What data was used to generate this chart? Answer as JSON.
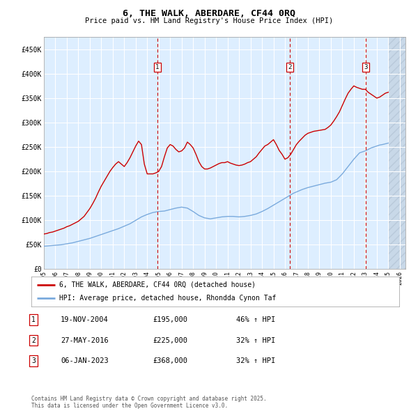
{
  "title": "6, THE WALK, ABERDARE, CF44 0RQ",
  "subtitle": "Price paid vs. HM Land Registry's House Price Index (HPI)",
  "legend_label_red": "6, THE WALK, ABERDARE, CF44 0RQ (detached house)",
  "legend_label_blue": "HPI: Average price, detached house, Rhondda Cynon Taf",
  "footer": "Contains HM Land Registry data © Crown copyright and database right 2025.\nThis data is licensed under the Open Government Licence v3.0.",
  "transactions": [
    {
      "num": 1,
      "date": "19-NOV-2004",
      "price": 195000,
      "hpi_change": "46% ↑ HPI",
      "x_year": 2004.89
    },
    {
      "num": 2,
      "date": "27-MAY-2016",
      "price": 225000,
      "hpi_change": "32% ↑ HPI",
      "x_year": 2016.41
    },
    {
      "num": 3,
      "date": "06-JAN-2023",
      "price": 368000,
      "hpi_change": "32% ↑ HPI",
      "x_year": 2023.02
    }
  ],
  "ylim": [
    0,
    475000
  ],
  "xlim_start": 1995,
  "xlim_end": 2026.5,
  "yticks": [
    0,
    50000,
    100000,
    150000,
    200000,
    250000,
    300000,
    350000,
    400000,
    450000
  ],
  "ytick_labels": [
    "£0",
    "£50K",
    "£100K",
    "£150K",
    "£200K",
    "£250K",
    "£300K",
    "£350K",
    "£400K",
    "£450K"
  ],
  "xticks": [
    1995,
    1996,
    1997,
    1998,
    1999,
    2000,
    2001,
    2002,
    2003,
    2004,
    2005,
    2006,
    2007,
    2008,
    2009,
    2010,
    2011,
    2012,
    2013,
    2014,
    2015,
    2016,
    2017,
    2018,
    2019,
    2020,
    2021,
    2022,
    2023,
    2024,
    2025,
    2026
  ],
  "red_color": "#cc0000",
  "blue_color": "#7aaadd",
  "background_color": "#ddeeff",
  "hatch_color": "#c8d8e8",
  "grid_color": "#ffffff",
  "hpi_line": {
    "years": [
      1995,
      1995.25,
      1995.5,
      1995.75,
      1996,
      1996.25,
      1996.5,
      1996.75,
      1997,
      1997.25,
      1997.5,
      1997.75,
      1998,
      1998.25,
      1998.5,
      1998.75,
      1999,
      1999.25,
      1999.5,
      1999.75,
      2000,
      2000.25,
      2000.5,
      2000.75,
      2001,
      2001.25,
      2001.5,
      2001.75,
      2002,
      2002.25,
      2002.5,
      2002.75,
      2003,
      2003.25,
      2003.5,
      2003.75,
      2004,
      2004.25,
      2004.5,
      2004.75,
      2005,
      2005.25,
      2005.5,
      2005.75,
      2006,
      2006.25,
      2006.5,
      2006.75,
      2007,
      2007.25,
      2007.5,
      2007.75,
      2008,
      2008.25,
      2008.5,
      2008.75,
      2009,
      2009.25,
      2009.5,
      2009.75,
      2010,
      2010.25,
      2010.5,
      2010.75,
      2011,
      2011.25,
      2011.5,
      2011.75,
      2012,
      2012.25,
      2012.5,
      2012.75,
      2013,
      2013.25,
      2013.5,
      2013.75,
      2014,
      2014.25,
      2014.5,
      2014.75,
      2015,
      2015.25,
      2015.5,
      2015.75,
      2016,
      2016.25,
      2016.5,
      2016.75,
      2017,
      2017.25,
      2017.5,
      2017.75,
      2018,
      2018.25,
      2018.5,
      2018.75,
      2019,
      2019.25,
      2019.5,
      2019.75,
      2020,
      2020.25,
      2020.5,
      2020.75,
      2021,
      2021.25,
      2021.5,
      2021.75,
      2022,
      2022.25,
      2022.5,
      2022.75,
      2023,
      2023.25,
      2023.5,
      2023.75,
      2024,
      2024.25,
      2024.5,
      2024.75,
      2025
    ],
    "values": [
      47000,
      47500,
      48000,
      48500,
      49000,
      49500,
      50000,
      51000,
      52000,
      53000,
      54000,
      55500,
      57000,
      58500,
      60000,
      61500,
      63000,
      65000,
      67000,
      69000,
      71000,
      73000,
      75000,
      77000,
      79000,
      81000,
      83000,
      85500,
      88000,
      90500,
      93000,
      96500,
      100000,
      103500,
      107000,
      109500,
      112000,
      114000,
      116000,
      117000,
      118000,
      118500,
      119000,
      120500,
      122000,
      123500,
      125000,
      126000,
      127000,
      126000,
      125000,
      121500,
      118000,
      114000,
      110000,
      107500,
      105000,
      104000,
      103000,
      104000,
      105000,
      106000,
      107000,
      107500,
      108000,
      108000,
      108000,
      107500,
      107000,
      107500,
      108000,
      109000,
      110000,
      111500,
      113000,
      115500,
      118000,
      121000,
      124000,
      127500,
      131000,
      134500,
      138000,
      141500,
      145000,
      148500,
      152000,
      155500,
      158000,
      160500,
      163000,
      165000,
      167000,
      168500,
      170000,
      171500,
      173000,
      174500,
      176000,
      177000,
      178000,
      180500,
      183000,
      189000,
      195000,
      202500,
      210000,
      217500,
      225000,
      231500,
      238000,
      240000,
      242000,
      245000,
      248000,
      250000,
      252000,
      254000,
      255000,
      256500,
      258000
    ]
  },
  "price_line": {
    "years": [
      1995,
      1995.25,
      1995.5,
      1995.75,
      1996,
      1996.25,
      1996.5,
      1996.75,
      1997,
      1997.25,
      1997.5,
      1997.75,
      1998,
      1998.25,
      1998.5,
      1998.75,
      1999,
      1999.25,
      1999.5,
      1999.75,
      2000,
      2000.25,
      2000.5,
      2000.75,
      2001,
      2001.25,
      2001.5,
      2001.75,
      2002,
      2002.25,
      2002.5,
      2002.75,
      2003,
      2003.25,
      2003.5,
      2003.75,
      2004,
      2004.25,
      2004.5,
      2004.75,
      2005,
      2005.25,
      2005.5,
      2005.75,
      2006,
      2006.25,
      2006.5,
      2006.75,
      2007,
      2007.25,
      2007.5,
      2007.75,
      2008,
      2008.25,
      2008.5,
      2008.75,
      2009,
      2009.25,
      2009.5,
      2009.75,
      2010,
      2010.25,
      2010.5,
      2010.75,
      2011,
      2011.25,
      2011.5,
      2011.75,
      2012,
      2012.25,
      2012.5,
      2012.75,
      2013,
      2013.25,
      2013.5,
      2013.75,
      2014,
      2014.25,
      2014.5,
      2014.75,
      2015,
      2015.25,
      2015.5,
      2015.75,
      2016,
      2016.25,
      2016.5,
      2016.75,
      2017,
      2017.25,
      2017.5,
      2017.75,
      2018,
      2018.25,
      2018.5,
      2018.75,
      2019,
      2019.25,
      2019.5,
      2019.75,
      2020,
      2020.25,
      2020.5,
      2020.75,
      2021,
      2021.25,
      2021.5,
      2021.75,
      2022,
      2022.25,
      2022.5,
      2022.75,
      2023,
      2023.25,
      2023.5,
      2023.75,
      2024,
      2024.25,
      2024.5,
      2024.75,
      2025
    ],
    "values": [
      72000,
      73000,
      75000,
      76000,
      78000,
      80000,
      82000,
      84000,
      87000,
      89000,
      92000,
      95000,
      98000,
      103000,
      108000,
      116000,
      124000,
      134000,
      145000,
      158000,
      170000,
      180000,
      190000,
      200000,
      208000,
      215000,
      220000,
      215000,
      210000,
      218000,
      228000,
      240000,
      252000,
      262000,
      255000,
      215000,
      195000,
      195000,
      195000,
      197000,
      200000,
      210000,
      230000,
      248000,
      255000,
      252000,
      245000,
      240000,
      242000,
      248000,
      260000,
      255000,
      248000,
      235000,
      220000,
      210000,
      205000,
      205000,
      207000,
      210000,
      213000,
      216000,
      218000,
      218000,
      220000,
      217000,
      215000,
      213000,
      212000,
      213000,
      215000,
      218000,
      220000,
      225000,
      230000,
      238000,
      245000,
      252000,
      255000,
      260000,
      265000,
      255000,
      243000,
      235000,
      225000,
      228000,
      235000,
      245000,
      255000,
      262000,
      268000,
      274000,
      278000,
      280000,
      282000,
      283000,
      284000,
      285000,
      286000,
      290000,
      295000,
      303000,
      312000,
      322000,
      335000,
      348000,
      360000,
      368000,
      375000,
      372000,
      370000,
      368000,
      368000,
      362000,
      358000,
      354000,
      350000,
      352000,
      356000,
      360000,
      362000
    ]
  }
}
